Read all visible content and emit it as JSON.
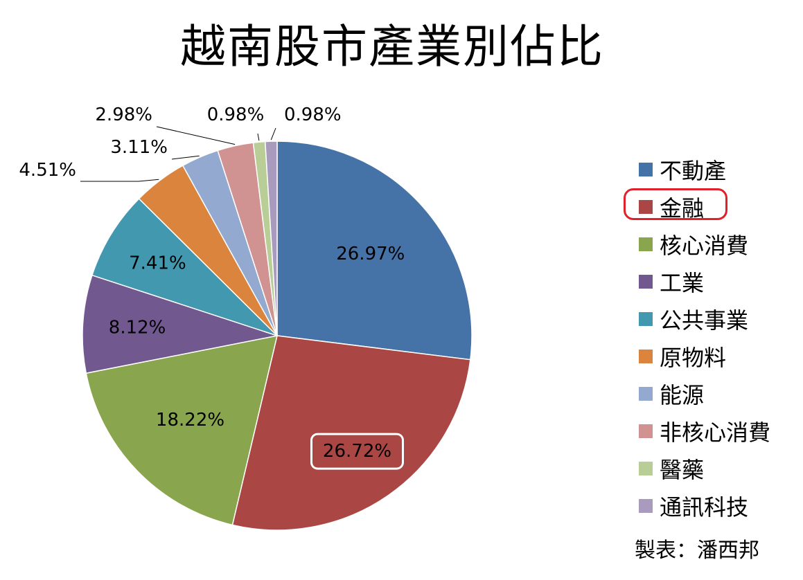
{
  "chart_data": {
    "type": "pie",
    "title": "越南股市產業別佔比",
    "categories": [
      "不動產",
      "金融",
      "核心消費",
      "工業",
      "公共事業",
      "原物料",
      "能源",
      "非核心消費",
      "醫藥",
      "通訊科技"
    ],
    "values": [
      26.97,
      26.72,
      18.22,
      8.12,
      7.41,
      4.51,
      3.11,
      2.98,
      0.98,
      0.98
    ],
    "data_labels": [
      "26.97%",
      "26.72%",
      "18.22%",
      "8.12%",
      "7.41%",
      "4.51%",
      "3.11%",
      "2.98%",
      "0.98%",
      "0.98%"
    ],
    "colors": [
      "#4572a7",
      "#aa4643",
      "#89a54e",
      "#71588f",
      "#4198af",
      "#db843d",
      "#93a9cf",
      "#d19392",
      "#b9cd96",
      "#a99bbd"
    ],
    "legend_position": "right",
    "highlighted_category": "金融",
    "highlighted_data_label": "26.72%"
  },
  "credit": "製表：潘西邦"
}
